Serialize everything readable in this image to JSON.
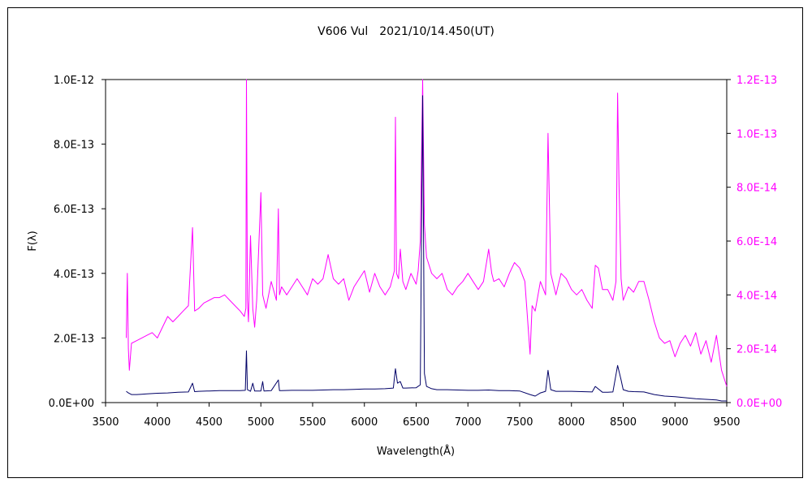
{
  "chart_data": {
    "type": "line",
    "title": "V606 Vul　2021/10/14.450(UT)",
    "xlabel": "Wavelength(Å)",
    "ylabel": "F(λ)",
    "xlim": [
      3500,
      9500
    ],
    "ylim": [
      0,
      1e-12
    ],
    "y2lim": [
      0,
      1.2e-13
    ],
    "x_ticks": [
      "3500",
      "4000",
      "4500",
      "5000",
      "5500",
      "6000",
      "6500",
      "7000",
      "7500",
      "8000",
      "8500",
      "9000",
      "9500"
    ],
    "y_ticks": [
      "0.0E+00",
      "2.0E-13",
      "4.0E-13",
      "6.0E-13",
      "8.0E-13",
      "1.0E-12"
    ],
    "y2_ticks": [
      "0.0E+00",
      "2.0E-14",
      "4.0E-14",
      "6.0E-14",
      "8.0E-14",
      "1.0E-13",
      "1.2E-13"
    ],
    "grid": false,
    "series": [
      {
        "axis": "left",
        "color": "#000066",
        "x": [
          3700,
          3720,
          3750,
          3800,
          3850,
          3900,
          3950,
          4000,
          4100,
          4200,
          4300,
          4340,
          4360,
          4400,
          4500,
          4600,
          4700,
          4800,
          4850,
          4861,
          4870,
          4900,
          4922,
          4940,
          5000,
          5018,
          5030,
          5100,
          5169,
          5180,
          5200,
          5300,
          5400,
          5500,
          5600,
          5700,
          5800,
          5900,
          6000,
          6100,
          6200,
          6280,
          6300,
          6320,
          6347,
          6371,
          6400,
          6500,
          6540,
          6563,
          6580,
          6600,
          6650,
          6700,
          6800,
          6900,
          7000,
          7100,
          7200,
          7300,
          7400,
          7500,
          7600,
          7650,
          7700,
          7750,
          7774,
          7800,
          7850,
          7900,
          8000,
          8100,
          8200,
          8230,
          8300,
          8350,
          8400,
          8446,
          8480,
          8500,
          8550,
          8600,
          8700,
          8800,
          8900,
          9000,
          9100,
          9200,
          9300,
          9400,
          9450,
          9500
        ],
        "y": [
          3.5e-14,
          3e-14,
          2.5e-14,
          2.5e-14,
          2.6e-14,
          2.7e-14,
          2.8e-14,
          2.9e-14,
          3e-14,
          3.2e-14,
          3.3e-14,
          6e-14,
          3.4e-14,
          3.5e-14,
          3.6e-14,
          3.7e-14,
          3.7e-14,
          3.7e-14,
          3.8e-14,
          1.6e-13,
          4e-14,
          3.5e-14,
          6e-14,
          3.6e-14,
          3.6e-14,
          6.5e-14,
          3.6e-14,
          3.7e-14,
          7e-14,
          3.7e-14,
          3.7e-14,
          3.8e-14,
          3.8e-14,
          3.8e-14,
          3.9e-14,
          4e-14,
          4e-14,
          4.1e-14,
          4.2e-14,
          4.2e-14,
          4.3e-14,
          4.5e-14,
          1.05e-13,
          6e-14,
          6.5e-14,
          4.5e-14,
          4.5e-14,
          4.6e-14,
          5.5e-14,
          9.5e-13,
          9e-14,
          5e-14,
          4.3e-14,
          4e-14,
          4e-14,
          3.9e-14,
          3.8e-14,
          3.8e-14,
          3.9e-14,
          3.7e-14,
          3.7e-14,
          3.6e-14,
          2.5e-14,
          2e-14,
          3e-14,
          3.5e-14,
          1e-13,
          4e-14,
          3.5e-14,
          3.5e-14,
          3.5e-14,
          3.4e-14,
          3.3e-14,
          5e-14,
          3.2e-14,
          3.2e-14,
          3.3e-14,
          1.15e-13,
          7e-14,
          4e-14,
          3.5e-14,
          3.4e-14,
          3.3e-14,
          2.5e-14,
          2e-14,
          1.8e-14,
          1.5e-14,
          1.2e-14,
          1e-14,
          8e-15,
          5e-15,
          5e-15
        ]
      },
      {
        "axis": "right",
        "color": "#ff00ff",
        "x": [
          3700,
          3710,
          3720,
          3730,
          3750,
          3800,
          3850,
          3900,
          3950,
          4000,
          4050,
          4100,
          4150,
          4200,
          4250,
          4300,
          4340,
          4360,
          4400,
          4450,
          4500,
          4550,
          4600,
          4650,
          4700,
          4750,
          4800,
          4840,
          4855,
          4861,
          4870,
          4880,
          4900,
          4922,
          4940,
          4960,
          5000,
          5018,
          5030,
          5050,
          5100,
          5150,
          5169,
          5180,
          5200,
          5250,
          5300,
          5350,
          5400,
          5450,
          5500,
          5550,
          5600,
          5650,
          5700,
          5750,
          5800,
          5850,
          5900,
          5950,
          6000,
          6050,
          6100,
          6150,
          6200,
          6250,
          6290,
          6300,
          6310,
          6330,
          6347,
          6371,
          6400,
          6450,
          6500,
          6520,
          6540,
          6563,
          6580,
          6600,
          6650,
          6700,
          6750,
          6800,
          6850,
          6900,
          6950,
          7000,
          7050,
          7100,
          7150,
          7200,
          7230,
          7250,
          7300,
          7350,
          7400,
          7450,
          7500,
          7550,
          7600,
          7620,
          7650,
          7700,
          7750,
          7774,
          7800,
          7850,
          7900,
          7950,
          8000,
          8050,
          8100,
          8150,
          8200,
          8230,
          8260,
          8300,
          8350,
          8400,
          8430,
          8446,
          8460,
          8480,
          8500,
          8550,
          8600,
          8650,
          8700,
          8750,
          8800,
          8850,
          8900,
          8950,
          9000,
          9050,
          9100,
          9150,
          9200,
          9250,
          9300,
          9350,
          9400,
          9450,
          9500
        ],
        "y": [
          2.4e-14,
          4.8e-14,
          2e-14,
          1.2e-14,
          2.2e-14,
          2.3e-14,
          2.4e-14,
          2.5e-14,
          2.6e-14,
          2.4e-14,
          2.8e-14,
          3.2e-14,
          3e-14,
          3.2e-14,
          3.4e-14,
          3.6e-14,
          6.5e-14,
          3.4e-14,
          3.5e-14,
          3.7e-14,
          3.8e-14,
          3.9e-14,
          3.9e-14,
          4e-14,
          3.8e-14,
          3.6e-14,
          3.4e-14,
          3.2e-14,
          3.5e-14,
          1.2e-13,
          3.8e-14,
          3e-14,
          6.2e-14,
          3.5e-14,
          2.8e-14,
          3.8e-14,
          7.8e-14,
          4e-14,
          3.8e-14,
          3.5e-14,
          4.5e-14,
          3.8e-14,
          7.2e-14,
          4e-14,
          4.3e-14,
          4e-14,
          4.3e-14,
          4.6e-14,
          4.3e-14,
          4e-14,
          4.6e-14,
          4.4e-14,
          4.6e-14,
          5.5e-14,
          4.6e-14,
          4.4e-14,
          4.6e-14,
          3.8e-14,
          4.3e-14,
          4.6e-14,
          4.9e-14,
          4.1e-14,
          4.8e-14,
          4.3e-14,
          4e-14,
          4.3e-14,
          4.9e-14,
          1.06e-13,
          4.8e-14,
          4.6e-14,
          5.7e-14,
          4.5e-14,
          4.2e-14,
          4.8e-14,
          4.4e-14,
          4.9e-14,
          6e-14,
          1.2e-13,
          6.6e-14,
          5.4e-14,
          4.8e-14,
          4.6e-14,
          4.8e-14,
          4.2e-14,
          4e-14,
          4.3e-14,
          4.5e-14,
          4.8e-14,
          4.5e-14,
          4.2e-14,
          4.5e-14,
          5.7e-14,
          4.8e-14,
          4.5e-14,
          4.6e-14,
          4.3e-14,
          4.8e-14,
          5.2e-14,
          5e-14,
          4.5e-14,
          1.8e-14,
          3.6e-14,
          3.4e-14,
          4.5e-14,
          4e-14,
          1e-13,
          4.8e-14,
          4e-14,
          4.8e-14,
          4.6e-14,
          4.2e-14,
          4e-14,
          4.2e-14,
          3.8e-14,
          3.5e-14,
          5.1e-14,
          5e-14,
          4.2e-14,
          4.2e-14,
          3.8e-14,
          4.5e-14,
          1.15e-13,
          8e-14,
          4.6e-14,
          3.8e-14,
          4.3e-14,
          4.1e-14,
          4.5e-14,
          4.5e-14,
          3.8e-14,
          3e-14,
          2.4e-14,
          2.2e-14,
          2.3e-14,
          1.7e-14,
          2.2e-14,
          2.5e-14,
          2.1e-14,
          2.6e-14,
          1.8e-14,
          2.3e-14,
          1.5e-14,
          2.5e-14,
          1.2e-14,
          6e-15
        ]
      }
    ]
  }
}
